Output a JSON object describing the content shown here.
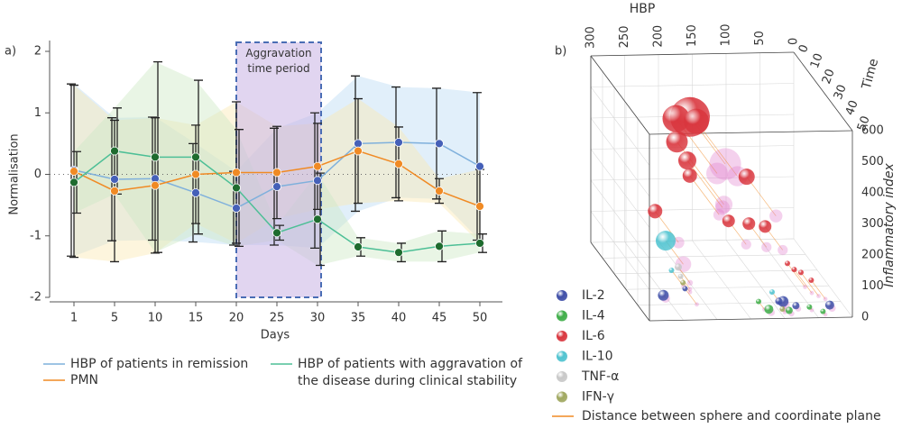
{
  "chart_data": [
    {
      "type": "line",
      "panel_label": "a)",
      "x_label": "Days",
      "y_label": "Normalisation",
      "categories": [
        "1",
        "5",
        "10",
        "15",
        "20",
        "25",
        "30",
        "35",
        "40",
        "45",
        "50"
      ],
      "ylim": [
        -2,
        2
      ],
      "yticks": [
        -2,
        -1,
        0,
        1,
        2
      ],
      "zero_line": true,
      "shaded_region": {
        "label": "Aggravation time period",
        "from": "20",
        "to": "30",
        "color": "#c9b3e3",
        "border_color": "#4a6db5"
      },
      "series": [
        {
          "name": "HBP of patients in remission",
          "color": "#7fb0dc",
          "marker_color": "#4560b8",
          "band_color": "#bcdcf3",
          "values": [
            0.07,
            -0.08,
            -0.07,
            -0.3,
            -0.55,
            -0.2,
            -0.1,
            0.5,
            0.52,
            0.5,
            0.13
          ],
          "errors": [
            1.4,
            1.0,
            1.0,
            0.8,
            0.6,
            0.95,
            1.1,
            1.1,
            0.9,
            0.9,
            1.2
          ]
        },
        {
          "name": "PMN",
          "color": "#f08a24",
          "marker_color": "#f08a24",
          "band_color": "#fbe9b4",
          "values": [
            0.05,
            -0.27,
            -0.18,
            0.0,
            0.03,
            0.03,
            0.13,
            0.38,
            0.17,
            -0.27,
            -0.52
          ],
          "errors": [
            1.4,
            1.15,
            1.1,
            0.8,
            1.15,
            0.75,
            0.7,
            0.85,
            0.6,
            0.2,
            0.6
          ]
        },
        {
          "name": "HBP of patients with aggravation of the disease during clinical stability",
          "color": "#4dbf96",
          "marker_color": "#1e6b2e",
          "band_color": "#cfe8c6",
          "values": [
            -0.13,
            0.38,
            0.28,
            0.28,
            -0.22,
            -0.95,
            -0.73,
            -1.18,
            -1.27,
            -1.17,
            -1.12
          ],
          "errors": [
            0.5,
            0.7,
            1.55,
            1.25,
            0.95,
            0.12,
            0.75,
            0.15,
            0.15,
            0.25,
            0.15
          ]
        }
      ]
    },
    {
      "type": "bubble3d",
      "panel_label": "b)",
      "x_label": "HBP",
      "y_label": "Time",
      "z_label": "Inflammatory index",
      "xlim": [
        0,
        300
      ],
      "xticks": [
        0,
        50,
        100,
        150,
        200,
        250,
        300
      ],
      "ylim": [
        0,
        50
      ],
      "yticks": [
        0,
        10,
        20,
        30,
        40,
        50
      ],
      "zlim": [
        0,
        600
      ],
      "zticks": [
        0,
        100,
        200,
        300,
        400,
        500,
        600
      ],
      "distance_label": "Distance between sphere and coordinate plane",
      "distance_color": "#f08a24",
      "projection_color": "#e07ccc",
      "series": [
        {
          "name": "IL-2",
          "color": "#3f4fa8",
          "x": [
            276,
            99,
            100,
            30,
            230,
            80
          ],
          "y": [
            48,
            48,
            45,
            48,
            40,
            48
          ],
          "z": [
            71,
            44,
            30,
            30,
            50,
            30
          ],
          "size": [
            6,
            6,
            4,
            5,
            3,
            4
          ]
        },
        {
          "name": "IL-4",
          "color": "#3fae49",
          "x": [
            120,
            90,
            60,
            130,
            40
          ],
          "y": [
            48,
            48,
            48,
            45,
            48
          ],
          "z": [
            20,
            15,
            25,
            30,
            10
          ],
          "size": [
            5,
            4,
            3,
            3,
            3
          ]
        },
        {
          "name": "IL-6",
          "color": "#d9363e",
          "x": [
            188,
            200,
            170,
            190,
            192,
            197,
            113,
            257,
            127,
            157,
            103,
            60,
            50,
            70,
            40
          ],
          "y": [
            20,
            15,
            15,
            10,
            20,
            25,
            25,
            30,
            35,
            35,
            35,
            35,
            35,
            35,
            38
          ],
          "z": [
            500,
            470,
            460,
            370,
            360,
            337,
            330,
            250,
            230,
            240,
            220,
            80,
            70,
            100,
            60
          ],
          "size": [
            22,
            15,
            14,
            12,
            10,
            8,
            9,
            8,
            7,
            7,
            7,
            3,
            3,
            3,
            3
          ]
        },
        {
          "name": "IL-10",
          "color": "#4fc3d0",
          "x": [
            250,
            110,
            250
          ],
          "y": [
            35,
            45,
            40
          ],
          "z": [
            180,
            60,
            110
          ],
          "size": [
            11,
            3,
            3
          ]
        },
        {
          "name": "TNF-α",
          "color": "#c8c8c8",
          "x": [
            240,
            240
          ],
          "y": [
            40,
            42
          ],
          "z": [
            120,
            100
          ],
          "size": [
            4,
            3
          ]
        },
        {
          "name": "IFN-γ",
          "color": "#a0a860",
          "x": [
            240,
            100
          ],
          "y": [
            44,
            48
          ],
          "z": [
            90,
            20
          ],
          "size": [
            3,
            3
          ]
        }
      ]
    }
  ]
}
